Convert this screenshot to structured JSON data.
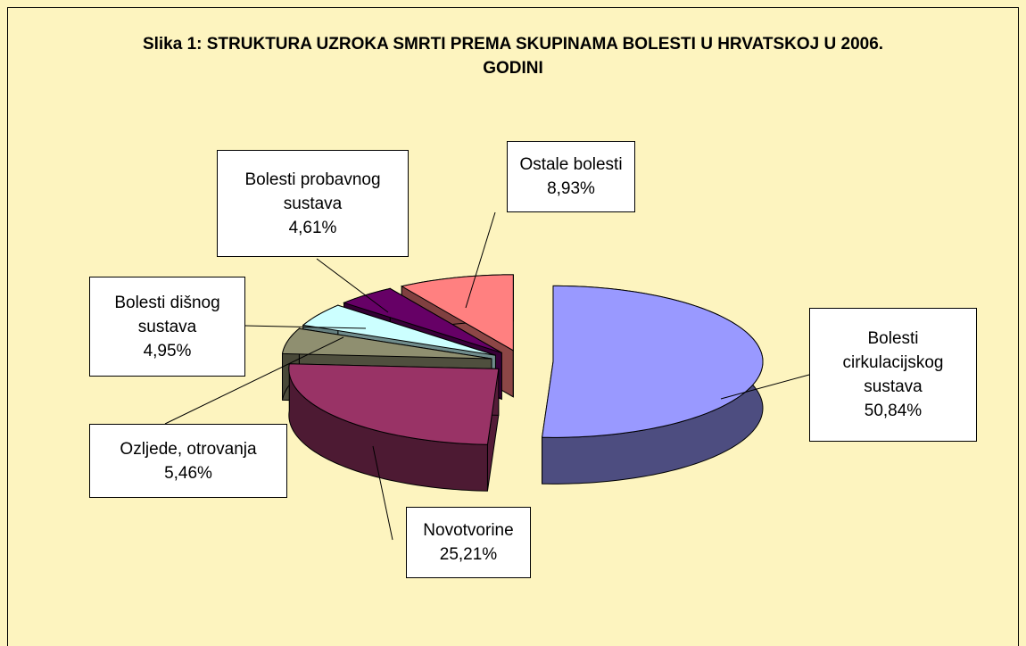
{
  "chart_data": {
    "type": "pie",
    "title": "Slika 1: STRUKTURA UZROKA SMRTI PREMA SKUPINAMA BOLESTI U HRVATSKOJ U 2006. GODINI",
    "categories": [
      "Bolesti cirkulacijskog sustava",
      "Novotvorine",
      "Ozljede, otrovanja",
      "Bolesti dišnog sustava",
      "Bolesti probavnog sustava",
      "Ostale bolesti"
    ],
    "values": [
      50.84,
      25.21,
      5.46,
      4.95,
      4.61,
      8.93
    ],
    "value_labels": [
      "50,84%",
      "25,21%",
      "5,46%",
      "4,95%",
      "4,61%",
      "8,93%"
    ],
    "colors": [
      "#9999ff",
      "#993366",
      "#8f8f70",
      "#ccffff",
      "#660066",
      "#ff8080"
    ]
  }
}
